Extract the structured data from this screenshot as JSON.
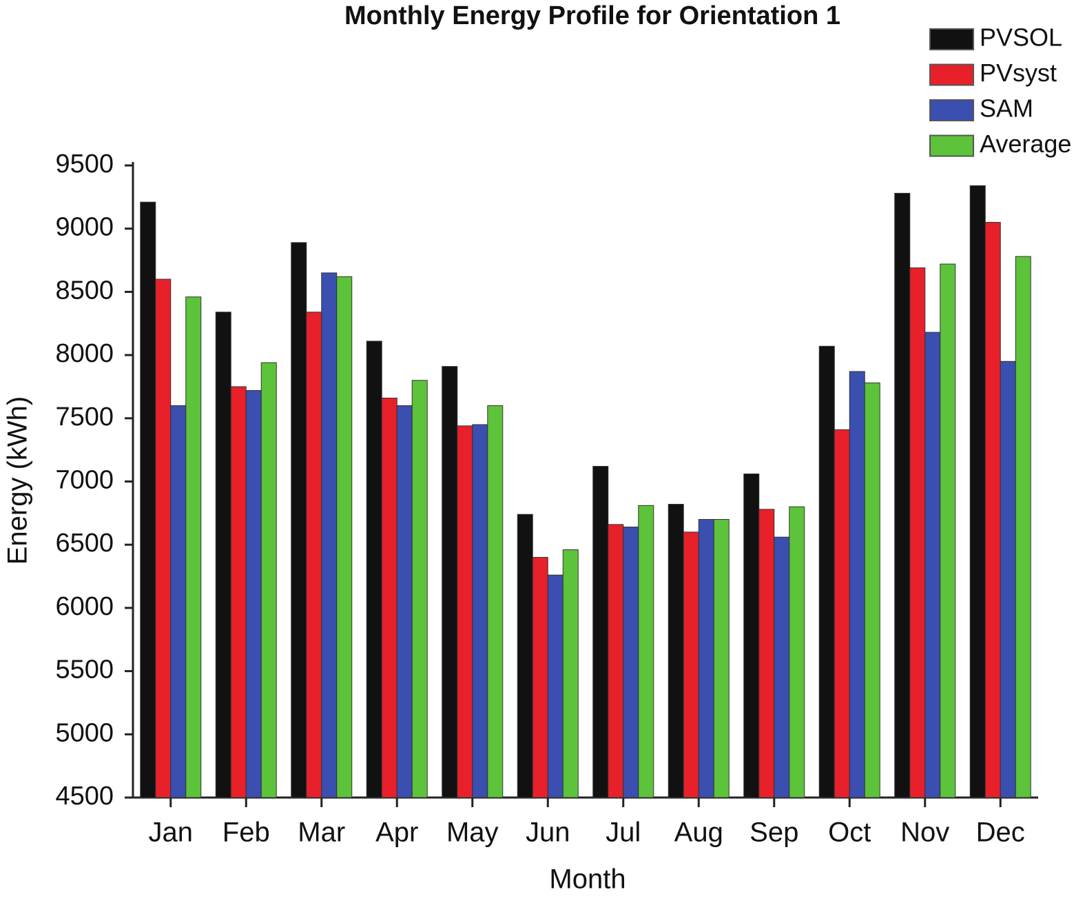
{
  "chart_data": {
    "type": "bar",
    "title": "Monthly Energy Profile for Orientation 1",
    "x_label": "Month",
    "y_label": "Energy (kWh)",
    "categories": [
      "Jan",
      "Feb",
      "Mar",
      "Apr",
      "May",
      "Jun",
      "Jul",
      "Aug",
      "Sep",
      "Oct",
      "Nov",
      "Dec"
    ],
    "series": [
      {
        "name": "PVSOL",
        "color": "#111111",
        "values": [
          9210,
          8340,
          8890,
          8110,
          7910,
          6740,
          7120,
          6820,
          7060,
          8070,
          9280,
          9340
        ]
      },
      {
        "name": "PVsyst",
        "color": "#e8202a",
        "values": [
          8600,
          7750,
          8340,
          7660,
          7440,
          6400,
          6660,
          6600,
          6780,
          7410,
          8690,
          9050
        ]
      },
      {
        "name": "SAM",
        "color": "#3a4fb0",
        "values": [
          7600,
          7720,
          8650,
          7600,
          7450,
          6260,
          6640,
          6700,
          6560,
          7870,
          8180,
          7950
        ]
      },
      {
        "name": "Average",
        "color": "#5cc33a",
        "values": [
          8460,
          7940,
          8620,
          7800,
          7600,
          6460,
          6810,
          6700,
          6800,
          7780,
          8720,
          8780
        ]
      }
    ],
    "ylim": [
      4500,
      9500
    ],
    "yticks": [
      4500,
      5000,
      5500,
      6000,
      6500,
      7000,
      7500,
      8000,
      8500,
      9000,
      9500
    ]
  }
}
